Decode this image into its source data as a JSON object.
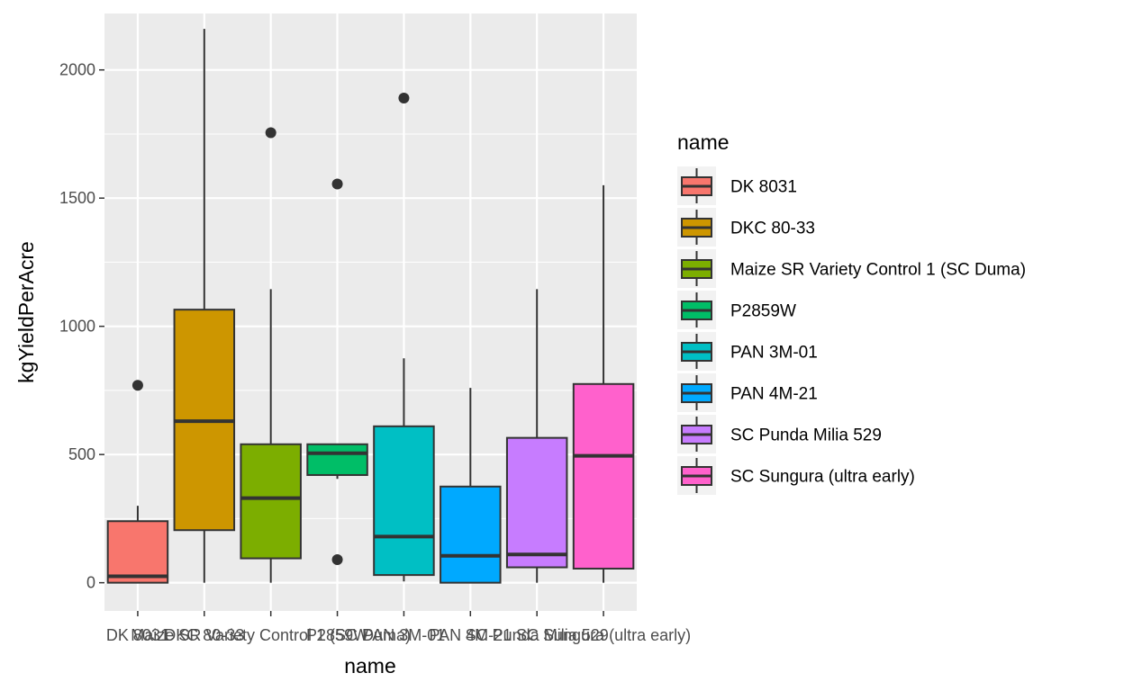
{
  "chart_data": {
    "type": "boxplot",
    "xlabel": "name",
    "ylabel": "kgYieldPerAcre",
    "ylim": [
      -110,
      2220
    ],
    "yticks": [
      0,
      500,
      1000,
      1500,
      2000
    ],
    "grid": true,
    "legend": {
      "title": "name",
      "position": "right"
    },
    "categories": [
      "DK 8031",
      "DKC 80-33",
      "Maize SR Variety Control 1 (SC Duma)",
      "P2859W",
      "PAN 3M-01",
      "PAN 4M-21",
      "SC Punda Milia 529",
      "SC Sungura (ultra early)"
    ],
    "colors": [
      "#F8766D",
      "#CD9600",
      "#7CAE00",
      "#00BE67",
      "#00BFC4",
      "#00A9FF",
      "#C77CFF",
      "#FF61CC"
    ],
    "boxes": [
      {
        "name": "DK 8031",
        "min": 0,
        "q1": 0,
        "median": 25,
        "q3": 240,
        "max": 300,
        "outliers": [
          770
        ]
      },
      {
        "name": "DKC 80-33",
        "min": 0,
        "q1": 205,
        "median": 630,
        "q3": 1065,
        "max": 2160,
        "outliers": []
      },
      {
        "name": "Maize SR Variety Control 1 (SC Duma)",
        "min": 0,
        "q1": 95,
        "median": 330,
        "q3": 540,
        "max": 1145,
        "outliers": [
          1755
        ]
      },
      {
        "name": "P2859W",
        "min": 405,
        "q1": 420,
        "median": 505,
        "q3": 540,
        "max": 540,
        "outliers": [
          90,
          1555
        ]
      },
      {
        "name": "PAN 3M-01",
        "min": 5,
        "q1": 30,
        "median": 180,
        "q3": 610,
        "max": 875,
        "outliers": [
          1890
        ]
      },
      {
        "name": "PAN 4M-21",
        "min": 0,
        "q1": 0,
        "median": 105,
        "q3": 375,
        "max": 760,
        "outliers": []
      },
      {
        "name": "SC Punda Milia 529",
        "min": 0,
        "q1": 60,
        "median": 110,
        "q3": 565,
        "max": 1145,
        "outliers": []
      },
      {
        "name": "SC Sungura (ultra early)",
        "min": 0,
        "q1": 55,
        "median": 495,
        "q3": 775,
        "max": 1550,
        "outliers": []
      }
    ]
  }
}
